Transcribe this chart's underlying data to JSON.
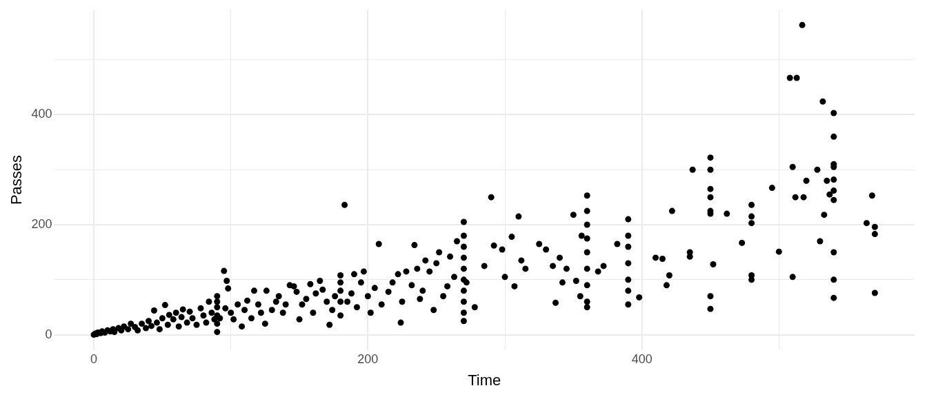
{
  "chart_data": {
    "type": "scatter",
    "xlabel": "Time",
    "ylabel": "Passes",
    "marker": "circle",
    "grid": true,
    "legend": false,
    "xlim": [
      -29,
      599
    ],
    "ylim": [
      -28,
      591
    ],
    "xticks": [
      0,
      {
        "value": 100,
        "label": null
      },
      200,
      {
        "value": 300,
        "label": null
      },
      400,
      {
        "value": 500,
        "label": null
      }
    ],
    "yticks": [
      0,
      {
        "value": 100,
        "label": null
      },
      200,
      {
        "value": 300,
        "label": null
      },
      400,
      {
        "value": 500,
        "label": null
      }
    ],
    "series": [
      {
        "color": "#000000",
        "x": [
          0,
          1,
          2,
          3,
          5,
          6,
          8,
          10,
          12,
          14,
          15,
          18,
          20,
          22,
          25,
          27,
          30,
          32,
          35,
          38,
          40,
          42,
          44,
          46,
          48,
          50,
          52,
          54,
          55,
          58,
          60,
          62,
          64,
          65,
          68,
          70,
          72,
          75,
          78,
          80,
          82,
          84,
          86,
          88,
          90,
          90,
          90,
          90,
          90,
          90,
          92,
          95,
          96,
          97,
          98,
          100,
          102,
          105,
          108,
          110,
          112,
          115,
          117,
          120,
          122,
          125,
          126,
          130,
          133,
          135,
          138,
          140,
          143,
          146,
          148,
          150,
          152,
          155,
          158,
          160,
          162,
          165,
          167,
          170,
          172,
          174,
          176,
          180,
          180,
          180,
          180,
          180,
          183,
          185,
          188,
          190,
          192,
          195,
          197,
          200,
          202,
          205,
          208,
          210,
          215,
          218,
          222,
          224,
          225,
          228,
          232,
          234,
          236,
          238,
          240,
          242,
          245,
          248,
          250,
          252,
          255,
          258,
          260,
          263,
          265,
          270,
          270,
          270,
          270,
          270,
          270,
          270,
          270,
          270,
          270,
          272,
          278,
          285,
          290,
          292,
          298,
          300,
          305,
          307,
          310,
          312,
          315,
          325,
          330,
          335,
          337,
          340,
          342,
          345,
          350,
          352,
          355,
          356,
          360,
          360,
          360,
          360,
          360,
          360,
          360,
          360,
          360,
          368,
          372,
          382,
          390,
          390,
          390,
          390,
          390,
          390,
          390,
          398,
          410,
          415,
          418,
          420,
          422,
          435,
          435,
          437,
          450,
          450,
          450,
          450,
          450,
          450,
          450,
          450,
          452,
          462,
          473,
          480,
          480,
          480,
          480,
          480,
          495,
          500,
          508,
          510,
          510,
          513,
          512,
          517,
          518,
          520,
          528,
          530,
          532,
          533,
          535,
          537,
          540,
          540,
          540,
          540,
          540,
          540,
          540,
          540,
          540,
          540,
          564,
          568,
          570,
          570,
          570
        ],
        "values": [
          0,
          2,
          1,
          4,
          3,
          6,
          4,
          8,
          6,
          10,
          5,
          12,
          8,
          15,
          10,
          20,
          14,
          8,
          20,
          12,
          25,
          16,
          44,
          22,
          10,
          30,
          54,
          18,
          36,
          28,
          40,
          15,
          32,
          46,
          22,
          42,
          30,
          18,
          48,
          35,
          22,
          60,
          40,
          28,
          5,
          20,
          35,
          50,
          60,
          70,
          30,
          116,
          48,
          98,
          84,
          40,
          28,
          55,
          15,
          45,
          62,
          30,
          80,
          55,
          40,
          20,
          80,
          45,
          60,
          70,
          40,
          55,
          90,
          88,
          78,
          28,
          55,
          65,
          92,
          40,
          75,
          98,
          82,
          60,
          18,
          45,
          70,
          35,
          60,
          80,
          95,
          108,
          236,
          60,
          75,
          110,
          50,
          95,
          115,
          70,
          40,
          85,
          165,
          55,
          78,
          95,
          110,
          22,
          60,
          115,
          90,
          163,
          120,
          65,
          80,
          135,
          115,
          45,
          130,
          150,
          70,
          88,
          142,
          105,
          170,
          25,
          40,
          60,
          80,
          100,
          120,
          140,
          160,
          180,
          205,
          95,
          50,
          125,
          250,
          162,
          155,
          105,
          178,
          88,
          215,
          135,
          120,
          165,
          155,
          125,
          58,
          140,
          95,
          120,
          218,
          98,
          70,
          180,
          50,
          60,
          90,
          120,
          150,
          175,
          200,
          225,
          253,
          115,
          125,
          165,
          55,
          80,
          100,
          130,
          160,
          180,
          210,
          68,
          140,
          138,
          90,
          108,
          225,
          142,
          150,
          300,
          47,
          70,
          220,
          225,
          250,
          265,
          300,
          322,
          128,
          220,
          167,
          100,
          108,
          203,
          215,
          236,
          267,
          151,
          467,
          305,
          105,
          467,
          250,
          563,
          250,
          280,
          300,
          170,
          424,
          218,
          280,
          255,
          67,
          100,
          150,
          245,
          262,
          282,
          305,
          310,
          360,
          403,
          203,
          253,
          76,
          183,
          196
        ]
      }
    ]
  }
}
